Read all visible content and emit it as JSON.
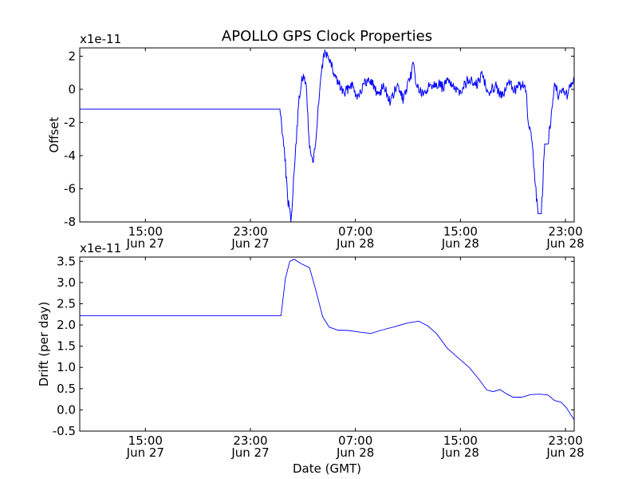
{
  "figure": {
    "title": "APOLLO GPS Clock Properties"
  },
  "chart_data": [
    {
      "type": "line",
      "title": "APOLLO GPS Clock Properties",
      "xlabel": "",
      "ylabel": "Offset",
      "offset_text": "x1e-11",
      "xlim": [
        "2013-06-27 10:00",
        "2013-06-28 23:40"
      ],
      "ylim": [
        -8,
        2.5
      ],
      "x_ticks": [
        {
          "x": "2013-06-27 15:00",
          "line1": "15:00",
          "line2": "Jun 27"
        },
        {
          "x": "2013-06-27 23:00",
          "line1": "23:00",
          "line2": "Jun 27"
        },
        {
          "x": "2013-06-28 07:00",
          "line1": "07:00",
          "line2": "Jun 28"
        },
        {
          "x": "2013-06-28 15:00",
          "line1": "15:00",
          "line2": "Jun 28"
        },
        {
          "x": "2013-06-28 23:00",
          "line1": "23:00",
          "line2": "Jun 28"
        }
      ],
      "y_ticks": [
        2,
        0,
        -2,
        -4,
        -6,
        -8
      ],
      "y_tick_labels": [
        "2",
        "0",
        "-2",
        "-4",
        "-6",
        "-8"
      ],
      "grid": false,
      "line_color": "#0000ff",
      "series": [
        {
          "name": "",
          "points": [
            [
              "2013-06-27 10:00",
              -1.2
            ],
            [
              "2013-06-28 01:15",
              -1.2
            ],
            [
              "2013-06-28 01:35",
              -3.5
            ],
            [
              "2013-06-28 01:50",
              -6.5
            ],
            [
              "2013-06-28 02:05",
              -8.0
            ],
            [
              "2013-06-28 02:20",
              -5.0
            ],
            [
              "2013-06-28 02:40",
              -1.0
            ],
            [
              "2013-06-28 02:55",
              0.8
            ],
            [
              "2013-06-28 03:15",
              0.3
            ],
            [
              "2013-06-28 03:30",
              -3.5
            ],
            [
              "2013-06-28 03:45",
              -4.4
            ],
            [
              "2013-06-28 04:00",
              -3.0
            ],
            [
              "2013-06-28 04:20",
              0.5
            ],
            [
              "2013-06-28 04:40",
              2.4
            ],
            [
              "2013-06-28 05:00",
              1.8
            ],
            [
              "2013-06-28 05:20",
              1.0
            ],
            [
              "2013-06-28 05:45",
              0.3
            ],
            [
              "2013-06-28 06:10",
              -0.3
            ],
            [
              "2013-06-28 06:40",
              0.4
            ],
            [
              "2013-06-28 07:10",
              -0.4
            ],
            [
              "2013-06-28 07:40",
              0.3
            ],
            [
              "2013-06-28 08:10",
              0.6
            ],
            [
              "2013-06-28 08:40",
              -0.3
            ],
            [
              "2013-06-28 09:10",
              0.2
            ],
            [
              "2013-06-28 09:40",
              -0.8
            ],
            [
              "2013-06-28 10:10",
              0.2
            ],
            [
              "2013-06-28 10:40",
              -0.6
            ],
            [
              "2013-06-28 11:10",
              0.6
            ],
            [
              "2013-06-28 11:25",
              1.6
            ],
            [
              "2013-06-28 11:40",
              0.2
            ],
            [
              "2013-06-28 12:10",
              -0.4
            ],
            [
              "2013-06-28 12:40",
              0.3
            ],
            [
              "2013-06-28 13:10",
              0.4
            ],
            [
              "2013-06-28 13:40",
              0.1
            ],
            [
              "2013-06-28 14:10",
              0.6
            ],
            [
              "2013-06-28 14:40",
              -0.2
            ],
            [
              "2013-06-28 15:10",
              0.1
            ],
            [
              "2013-06-28 15:40",
              0.6
            ],
            [
              "2013-06-28 16:10",
              0.2
            ],
            [
              "2013-06-28 16:40",
              0.9
            ],
            [
              "2013-06-28 17:10",
              -0.2
            ],
            [
              "2013-06-28 17:40",
              0.3
            ],
            [
              "2013-06-28 18:10",
              -0.5
            ],
            [
              "2013-06-28 18:40",
              0.4
            ],
            [
              "2013-06-28 19:10",
              0.0
            ],
            [
              "2013-06-28 19:40",
              0.3
            ],
            [
              "2013-06-28 20:00",
              -0.1
            ],
            [
              "2013-06-28 20:10",
              -2.0
            ],
            [
              "2013-06-28 20:25",
              -3.0
            ],
            [
              "2013-06-28 20:40",
              -5.5
            ],
            [
              "2013-06-28 20:55",
              -7.5
            ],
            [
              "2013-06-28 21:10",
              -7.5
            ],
            [
              "2013-06-28 21:25",
              -3.3
            ],
            [
              "2013-06-28 21:40",
              -3.3
            ],
            [
              "2013-06-28 21:55",
              -1.5
            ],
            [
              "2013-06-28 22:10",
              0.4
            ],
            [
              "2013-06-28 22:30",
              -0.4
            ],
            [
              "2013-06-28 22:50",
              0.1
            ],
            [
              "2013-06-28 23:10",
              -0.4
            ],
            [
              "2013-06-28 23:25",
              0.4
            ],
            [
              "2013-06-28 23:40",
              0.6
            ]
          ]
        }
      ]
    },
    {
      "type": "line",
      "title": "",
      "xlabel": "Date (GMT)",
      "ylabel": "Drift (per day)",
      "offset_text": "x1e-11",
      "xlim": [
        "2013-06-27 10:00",
        "2013-06-28 23:40"
      ],
      "ylim": [
        -0.5,
        3.6
      ],
      "x_ticks": [
        {
          "x": "2013-06-27 15:00",
          "line1": "15:00",
          "line2": "Jun 27"
        },
        {
          "x": "2013-06-27 23:00",
          "line1": "23:00",
          "line2": "Jun 27"
        },
        {
          "x": "2013-06-28 07:00",
          "line1": "07:00",
          "line2": "Jun 28"
        },
        {
          "x": "2013-06-28 15:00",
          "line1": "15:00",
          "line2": "Jun 28"
        },
        {
          "x": "2013-06-28 23:00",
          "line1": "23:00",
          "line2": "Jun 28"
        }
      ],
      "y_ticks": [
        3.5,
        3.0,
        2.5,
        2.0,
        1.5,
        1.0,
        0.5,
        0.0,
        -0.5
      ],
      "y_tick_labels": [
        "3.5",
        "3.0",
        "2.5",
        "2.0",
        "1.5",
        "1.0",
        "0.5",
        "0.0",
        "-0.5"
      ],
      "grid": false,
      "line_color": "#0000ff",
      "series": [
        {
          "name": "",
          "points": [
            [
              "2013-06-27 10:00",
              2.22
            ],
            [
              "2013-06-28 01:20",
              2.22
            ],
            [
              "2013-06-28 01:40",
              3.1
            ],
            [
              "2013-06-28 02:00",
              3.5
            ],
            [
              "2013-06-28 02:20",
              3.55
            ],
            [
              "2013-06-28 02:50",
              3.45
            ],
            [
              "2013-06-28 03:30",
              3.35
            ],
            [
              "2013-06-28 04:00",
              2.8
            ],
            [
              "2013-06-28 04:30",
              2.2
            ],
            [
              "2013-06-28 05:00",
              1.95
            ],
            [
              "2013-06-28 05:40",
              1.88
            ],
            [
              "2013-06-28 06:30",
              1.87
            ],
            [
              "2013-06-28 07:20",
              1.83
            ],
            [
              "2013-06-28 08:10",
              1.8
            ],
            [
              "2013-06-28 09:00",
              1.88
            ],
            [
              "2013-06-28 10:00",
              1.96
            ],
            [
              "2013-06-28 11:00",
              2.05
            ],
            [
              "2013-06-28 11:50",
              2.09
            ],
            [
              "2013-06-28 12:30",
              1.98
            ],
            [
              "2013-06-28 13:10",
              1.8
            ],
            [
              "2013-06-28 14:00",
              1.45
            ],
            [
              "2013-06-28 15:00",
              1.18
            ],
            [
              "2013-06-28 15:40",
              1.0
            ],
            [
              "2013-06-28 16:20",
              0.75
            ],
            [
              "2013-06-28 17:00",
              0.47
            ],
            [
              "2013-06-28 17:30",
              0.43
            ],
            [
              "2013-06-28 18:00",
              0.48
            ],
            [
              "2013-06-28 18:30",
              0.38
            ],
            [
              "2013-06-28 19:00",
              0.3
            ],
            [
              "2013-06-28 19:40",
              0.3
            ],
            [
              "2013-06-28 20:20",
              0.36
            ],
            [
              "2013-06-28 21:00",
              0.37
            ],
            [
              "2013-06-28 21:40",
              0.35
            ],
            [
              "2013-06-28 22:10",
              0.22
            ],
            [
              "2013-06-28 22:40",
              0.18
            ],
            [
              "2013-06-28 23:05",
              0.05
            ],
            [
              "2013-06-28 23:25",
              -0.12
            ],
            [
              "2013-06-28 23:40",
              -0.23
            ]
          ]
        }
      ]
    }
  ]
}
